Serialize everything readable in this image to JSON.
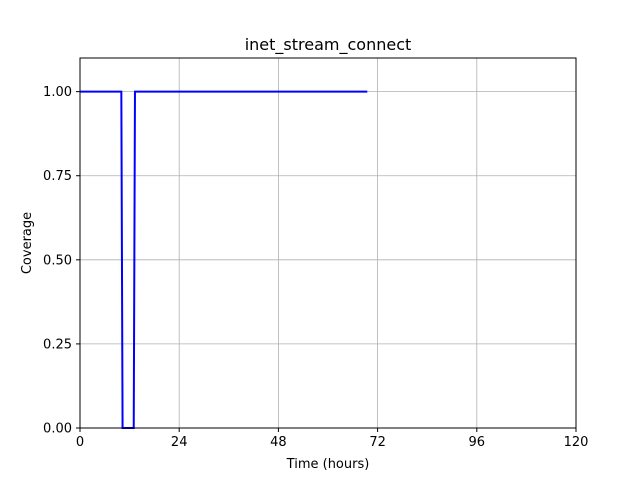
{
  "chart_data": {
    "type": "line",
    "title": "inet_stream_connect",
    "xlabel": "Time (hours)",
    "ylabel": "Coverage",
    "xlim": [
      0,
      120
    ],
    "ylim": [
      0,
      1.1
    ],
    "xticks": [
      0,
      24,
      48,
      72,
      96,
      120
    ],
    "yticks": [
      0.0,
      0.25,
      0.5,
      0.75,
      1.0
    ],
    "xtick_labels": [
      "0",
      "24",
      "48",
      "72",
      "96",
      "120"
    ],
    "ytick_labels": [
      "0.00",
      "0.25",
      "0.50",
      "0.75",
      "1.00"
    ],
    "grid": true,
    "series": [
      {
        "color": "#0000ff",
        "x": [
          0,
          10,
          10.3,
          13,
          13.3,
          69.5
        ],
        "y": [
          1.0,
          1.0,
          0.0,
          0.0,
          1.0,
          1.0
        ]
      }
    ]
  }
}
